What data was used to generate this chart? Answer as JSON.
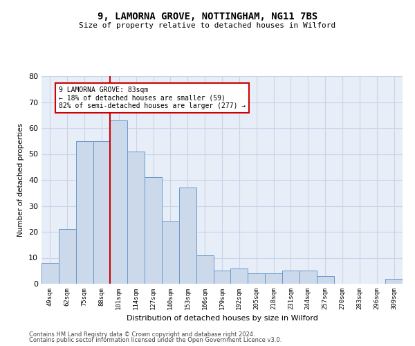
{
  "title_line1": "9, LAMORNA GROVE, NOTTINGHAM, NG11 7BS",
  "title_line2": "Size of property relative to detached houses in Wilford",
  "xlabel": "Distribution of detached houses by size in Wilford",
  "ylabel": "Number of detached properties",
  "categories": [
    "49sqm",
    "62sqm",
    "75sqm",
    "88sqm",
    "101sqm",
    "114sqm",
    "127sqm",
    "140sqm",
    "153sqm",
    "166sqm",
    "179sqm",
    "192sqm",
    "205sqm",
    "218sqm",
    "231sqm",
    "244sqm",
    "257sqm",
    "270sqm",
    "283sqm",
    "296sqm",
    "309sqm"
  ],
  "values": [
    8,
    21,
    55,
    55,
    63,
    51,
    41,
    24,
    37,
    11,
    5,
    6,
    4,
    4,
    5,
    5,
    3,
    0,
    0,
    0,
    2
  ],
  "bar_color": "#ccd9ea",
  "bar_edge_color": "#6699cc",
  "red_line_x": 3.5,
  "annotation_text": "9 LAMORNA GROVE: 83sqm\n← 18% of detached houses are smaller (59)\n82% of semi-detached houses are larger (277) →",
  "annotation_box_color": "#ffffff",
  "annotation_box_edge": "#cc0000",
  "ylim": [
    0,
    80
  ],
  "yticks": [
    0,
    10,
    20,
    30,
    40,
    50,
    60,
    70,
    80
  ],
  "grid_color": "#c8d4e8",
  "bg_color": "#e8eef8",
  "footer_line1": "Contains HM Land Registry data © Crown copyright and database right 2024.",
  "footer_line2": "Contains public sector information licensed under the Open Government Licence v3.0."
}
